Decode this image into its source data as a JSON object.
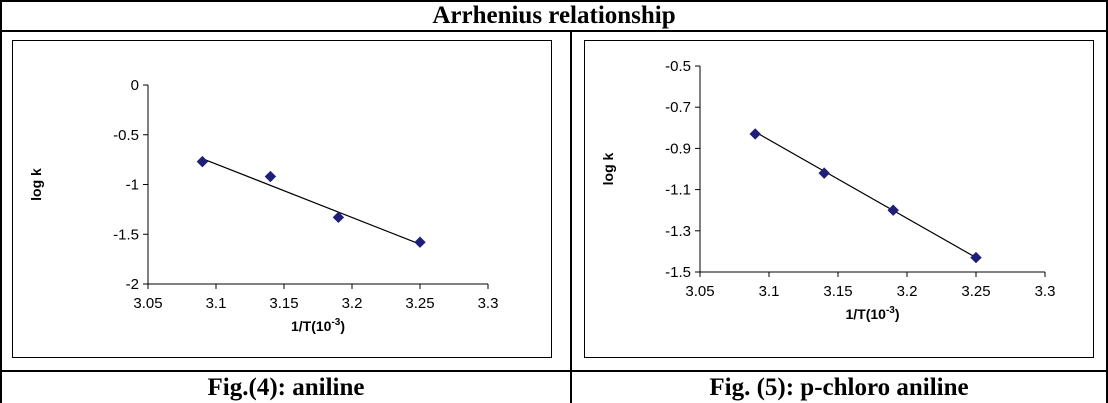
{
  "heading": "Arrhenius relationship",
  "captions": [
    "Fig.(4): aniline",
    "Fig. (5): p-chloro aniline"
  ],
  "chart_data": [
    {
      "type": "scatter",
      "xlabel": "1/T(10",
      "xlabel_sup": "-3",
      "xlabel_end": ")",
      "ylabel": "log k",
      "xlim": [
        3.05,
        3.3
      ],
      "ylim": [
        -2,
        0
      ],
      "xticks": [
        "3.05",
        "3.1",
        "3.15",
        "3.2",
        "3.25",
        "3.3"
      ],
      "yticks": [
        "0",
        "-0.5",
        "-1",
        "-1.5",
        "-2"
      ],
      "x": [
        3.09,
        3.14,
        3.19,
        3.25
      ],
      "y": [
        -0.77,
        -0.92,
        -1.33,
        -1.58
      ],
      "trendline": [
        [
          3.09,
          -0.74
        ],
        [
          3.25,
          -1.6
        ]
      ],
      "marker_color": "#1f1f7a",
      "line_color": "#000000"
    },
    {
      "type": "scatter",
      "xlabel": "1/T(10",
      "xlabel_sup": "-3",
      "xlabel_end": ")",
      "ylabel": "log k",
      "xlim": [
        3.05,
        3.3
      ],
      "ylim": [
        -1.5,
        -0.5
      ],
      "xticks": [
        "3.05",
        "3.1",
        "3.15",
        "3.2",
        "3.25",
        "3.3"
      ],
      "yticks": [
        "-0.5",
        "-0.7",
        "-0.9",
        "-1.1",
        "-1.3",
        "-1.5"
      ],
      "x": [
        3.09,
        3.14,
        3.19,
        3.25
      ],
      "y": [
        -0.83,
        -1.02,
        -1.2,
        -1.43
      ],
      "trendline": [
        [
          3.09,
          -0.82
        ],
        [
          3.25,
          -1.43
        ]
      ],
      "marker_color": "#1f1f7a",
      "line_color": "#000000"
    }
  ]
}
